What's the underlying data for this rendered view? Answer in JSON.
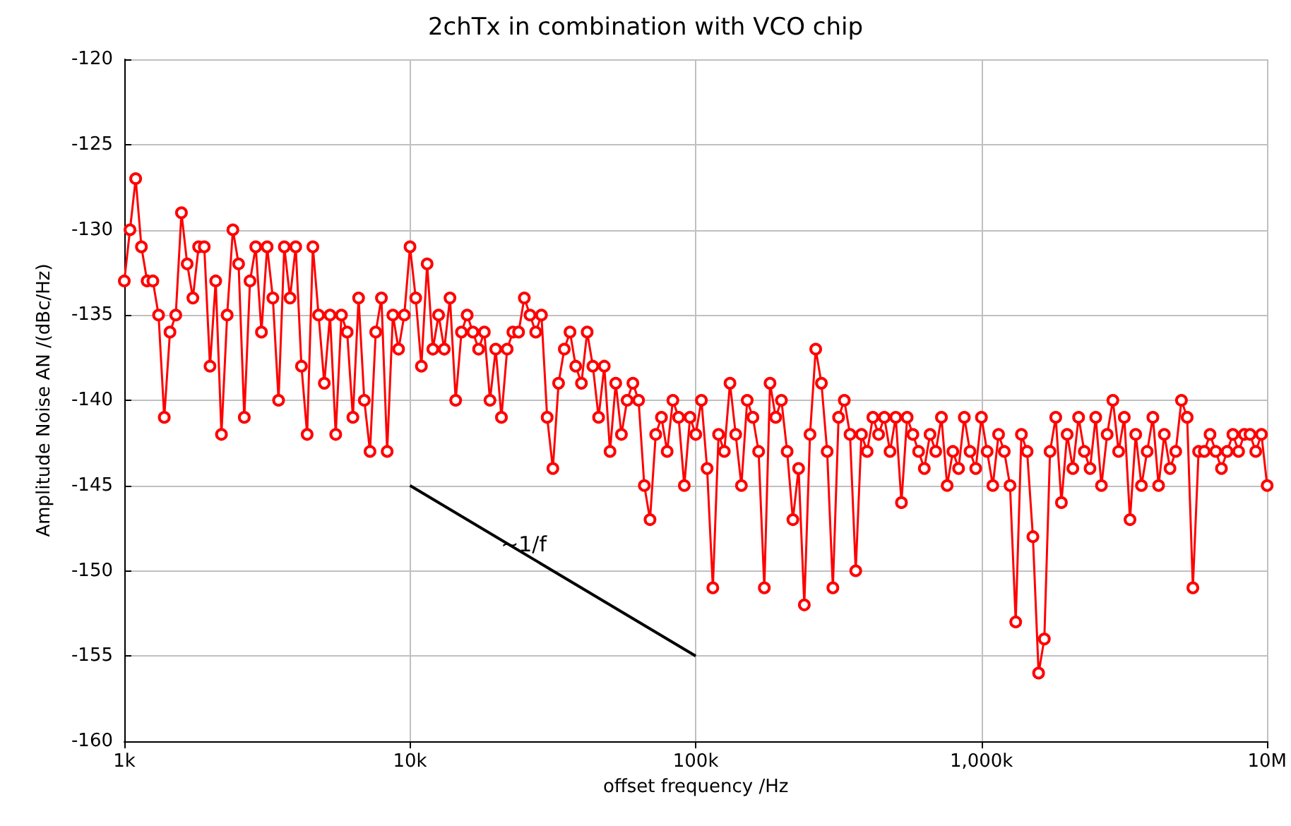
{
  "chart_data": {
    "type": "line",
    "title": "2chTx in combination with VCO chip",
    "xlabel": "offset frequency /Hz",
    "ylabel": "Amplitude Noise AN /(dBc/Hz)",
    "log": "x",
    "grid": true,
    "line_style": "solid",
    "xlim": [
      1000,
      10000000
    ],
    "ylim": [
      -160,
      -120
    ],
    "xticks": [
      {
        "value": 1000,
        "label": "1k"
      },
      {
        "value": 10000,
        "label": "10k"
      },
      {
        "value": 100000,
        "label": "100k"
      },
      {
        "value": 1000000,
        "label": "1,000k"
      },
      {
        "value": 10000000,
        "label": "10M"
      }
    ],
    "yticks": [
      -160,
      -155,
      -150,
      -145,
      -140,
      -135,
      -130,
      -125,
      -120
    ],
    "annotations": [
      {
        "text": "~1/f",
        "x": 30000,
        "y": -149.8
      }
    ],
    "series": [
      {
        "color": "#ff0000",
        "marker": "circle",
        "x": [
          1000,
          1047,
          1096,
          1148,
          1202,
          1259,
          1318,
          1380,
          1445,
          1514,
          1585,
          1660,
          1738,
          1820,
          1905,
          1995,
          2089,
          2188,
          2291,
          2399,
          2512,
          2630,
          2754,
          2884,
          3020,
          3162,
          3311,
          3467,
          3631,
          3802,
          3981,
          4169,
          4365,
          4571,
          4786,
          5012,
          5248,
          5495,
          5754,
          6026,
          6310,
          6607,
          6918,
          7244,
          7586,
          7943,
          8318,
          8710,
          9120,
          9550,
          10000,
          10470,
          10960,
          11480,
          12020,
          12590,
          13180,
          13800,
          14450,
          15140,
          15850,
          16600,
          17380,
          18200,
          19050,
          19950,
          20890,
          21880,
          22910,
          23990,
          25120,
          26300,
          27540,
          28840,
          30200,
          31620,
          33110,
          34670,
          36310,
          38020,
          39810,
          41690,
          43650,
          45710,
          47860,
          50120,
          52480,
          54950,
          57540,
          60260,
          63100,
          66070,
          69180,
          72440,
          75860,
          79430,
          83180,
          87100,
          91200,
          95500,
          100000,
          104700,
          109600,
          114800,
          120200,
          125900,
          131800,
          138000,
          144500,
          151400,
          158500,
          166000,
          173800,
          182000,
          190500,
          199500,
          208900,
          218800,
          229100,
          239900,
          251200,
          263000,
          275400,
          288400,
          302000,
          316200,
          331100,
          346700,
          363100,
          380200,
          398100,
          416900,
          436500,
          457100,
          478600,
          501200,
          524800,
          549500,
          575400,
          602600,
          631000,
          660700,
          691800,
          724400,
          758600,
          794300,
          831800,
          871000,
          912000,
          955000,
          1000000,
          1047000,
          1096000,
          1148000,
          1202000,
          1259000,
          1318000,
          1380000,
          1445000,
          1514000,
          1585000,
          1660000,
          1738000,
          1820000,
          1905000,
          1995000,
          2089000,
          2188000,
          2291000,
          2399000,
          2512000,
          2630000,
          2754000,
          2884000,
          3020000,
          3162000,
          3311000,
          3467000,
          3631000,
          3802000,
          3981000,
          4169000,
          4365000,
          4571000,
          4786000,
          5012000,
          5248000,
          5495000,
          5754000,
          6026000,
          6310000,
          6607000,
          6918000,
          7244000,
          7586000,
          7943000,
          8318000,
          8710000,
          9120000,
          9550000,
          10000000
        ],
        "values": [
          -133,
          -130,
          -127,
          -131,
          -133,
          -133,
          -135,
          -141,
          -136,
          -135,
          -129,
          -132,
          -134,
          -131,
          -131,
          -138,
          -133,
          -142,
          -135,
          -130,
          -132,
          -141,
          -133,
          -131,
          -136,
          -131,
          -134,
          -140,
          -131,
          -134,
          -131,
          -138,
          -142,
          -131,
          -135,
          -139,
          -135,
          -142,
          -135,
          -136,
          -141,
          -134,
          -140,
          -143,
          -136,
          -134,
          -143,
          -135,
          -137,
          -135,
          -131,
          -134,
          -138,
          -132,
          -137,
          -135,
          -137,
          -134,
          -140,
          -136,
          -135,
          -136,
          -137,
          -136,
          -140,
          -137,
          -141,
          -137,
          -136,
          -136,
          -134,
          -135,
          -136,
          -135,
          -141,
          -144,
          -139,
          -137,
          -136,
          -138,
          -139,
          -136,
          -138,
          -141,
          -138,
          -143,
          -139,
          -142,
          -140,
          -139,
          -140,
          -145,
          -147,
          -142,
          -141,
          -143,
          -140,
          -141,
          -145,
          -141,
          -142,
          -140,
          -144,
          -151,
          -142,
          -143,
          -139,
          -142,
          -145,
          -140,
          -141,
          -143,
          -151,
          -139,
          -141,
          -140,
          -143,
          -147,
          -144,
          -152,
          -142,
          -137,
          -139,
          -143,
          -151,
          -141,
          -140,
          -142,
          -150,
          -142,
          -143,
          -141,
          -142,
          -141,
          -143,
          -141,
          -146,
          -141,
          -142,
          -143,
          -144,
          -142,
          -143,
          -141,
          -145,
          -143,
          -144,
          -141,
          -143,
          -144,
          -141,
          -143,
          -145,
          -142,
          -143,
          -145,
          -153,
          -142,
          -143,
          -148,
          -156,
          -154,
          -143,
          -141,
          -146,
          -142,
          -144,
          -141,
          -143,
          -144,
          -141,
          -145,
          -142,
          -140,
          -143,
          -141,
          -147,
          -142,
          -145,
          -143,
          -141,
          -145,
          -142,
          -144,
          -143,
          -140,
          -141,
          -151,
          -143,
          -143,
          -142,
          -143,
          -144,
          -143,
          -142,
          -143,
          -142,
          -142,
          -143,
          -142,
          -145
        ]
      },
      {
        "color": "#000000",
        "marker": "none",
        "x": [
          10000,
          100000
        ],
        "values": [
          -145,
          -155
        ]
      }
    ]
  }
}
